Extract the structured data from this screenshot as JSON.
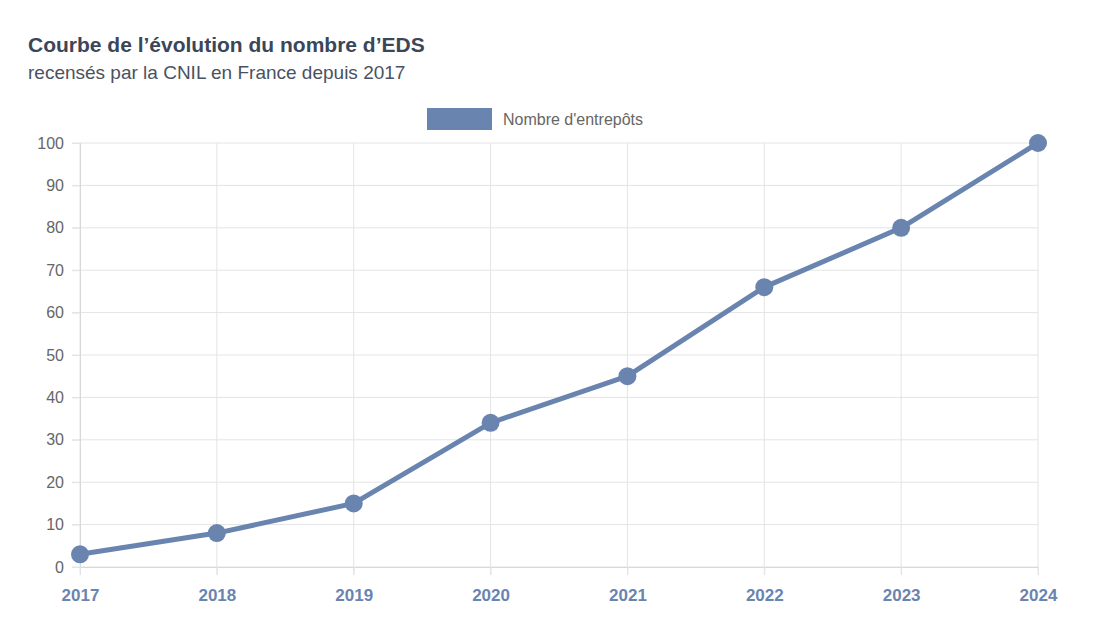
{
  "chart_data": {
    "type": "line",
    "title": "Courbe de l’évolution du nombre d’EDS",
    "subtitle": "recensés par la CNIL en France depuis 2017",
    "categories": [
      "2017",
      "2018",
      "2019",
      "2020",
      "2021",
      "2022",
      "2023",
      "2024"
    ],
    "series": [
      {
        "name": "Nombre d'entrepôts",
        "color": "#6a84b0",
        "marker": "circle",
        "values": [
          3,
          8,
          15,
          34,
          45,
          66,
          80,
          100
        ]
      }
    ],
    "ylim": [
      0,
      100
    ],
    "yticks": [
      0,
      10,
      20,
      30,
      40,
      50,
      60,
      70,
      80,
      90,
      100
    ],
    "grid": true,
    "legend": "top"
  }
}
